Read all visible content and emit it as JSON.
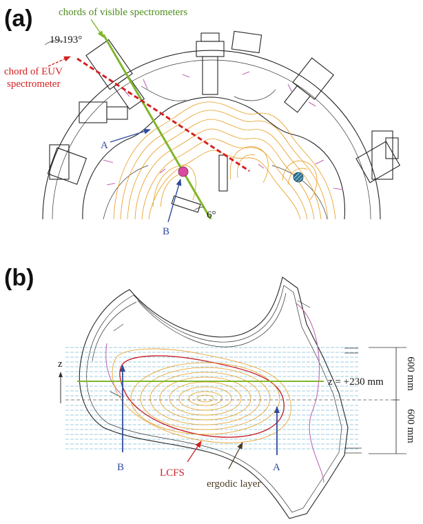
{
  "panels": {
    "a": {
      "label": "(a)"
    },
    "b": {
      "label": "(b)"
    }
  },
  "panel_a": {
    "visible_chords_label": "chords of visible spectrometers",
    "euv_chord_label_line1": "chord of EUV",
    "euv_chord_label_line2": "spectrometer",
    "angle_euv": "19.193°",
    "angle_visible": "6°",
    "point_a_label": "A",
    "point_b_label": "B"
  },
  "panel_b": {
    "z_axis_label": "z",
    "z_line_label": "z = +230 mm",
    "dim_upper": "600 mm",
    "dim_lower": "600 mm",
    "chord_b_label": "B",
    "chord_a_label": "A",
    "lcfs_label": "LCFS",
    "ergodic_label": "ergodic layer"
  },
  "colors": {
    "visible_chord": "#7fb62a",
    "euv_chord": "#d42020",
    "point_label_blue": "#2f4a9a",
    "lcfs": "#c8202a",
    "flux_orange": "#e79a1a",
    "coil_pink": "#bf68b5",
    "grid_blue": "#9ccde0"
  }
}
